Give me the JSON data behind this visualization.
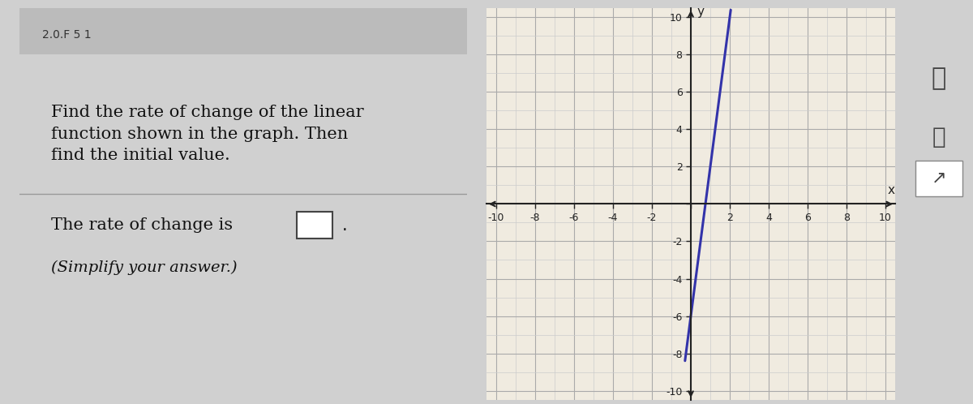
{
  "title_text": "Find the rate of change of the linear\nfunction shown in the graph. Then\nfind the initial value.",
  "question_text1": "The rate of change is",
  "question_text2": "(Simplify your answer.)",
  "header_text": "2.0.F 5 1",
  "bg_color": "#d0d0d0",
  "panel_bg": "#e0e0e0",
  "grid_bg": "#f0ebe0",
  "line_color": "#3333aa",
  "slope": 8,
  "y_intercept": -6,
  "xlim": [
    -10.5,
    10.5
  ],
  "ylim": [
    -10.5,
    10.5
  ],
  "grid_color": "#aaaaaa",
  "axis_color": "#222222",
  "tick_label_size": 9,
  "minor_grid_color": "#cccccc"
}
